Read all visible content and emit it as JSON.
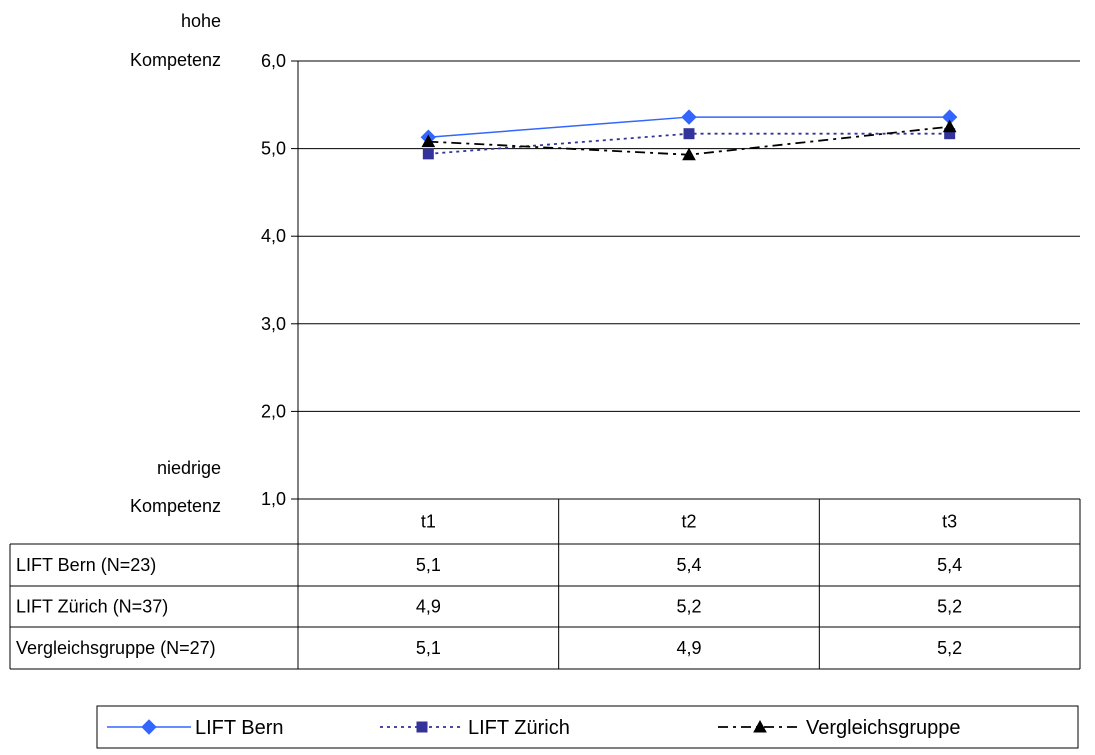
{
  "chart_data": {
    "type": "line",
    "title": "",
    "xlabel": "",
    "ylabel": "",
    "y_top_label": [
      "hohe",
      "Kompetenz"
    ],
    "y_bottom_label": [
      "niedrige",
      "Kompetenz"
    ],
    "ylim": [
      1.0,
      6.0
    ],
    "yticks": [
      1.0,
      2.0,
      3.0,
      4.0,
      5.0,
      6.0
    ],
    "ytick_labels": [
      "1,0",
      "2,0",
      "3,0",
      "4,0",
      "5,0",
      "6,0"
    ],
    "grid": true,
    "categories": [
      "t1",
      "t2",
      "t3"
    ],
    "series": [
      {
        "name": "LIFT Bern (N=23)",
        "legend_name": "LIFT Bern",
        "values": [
          5.13,
          5.36,
          5.36
        ],
        "table_values": [
          "5,1",
          "5,4",
          "5,4"
        ],
        "color": "#3366ff",
        "marker": "diamond",
        "dash": "solid"
      },
      {
        "name": "LIFT Zürich (N=37)",
        "legend_name": "LIFT Zürich",
        "values": [
          4.94,
          5.17,
          5.17
        ],
        "table_values": [
          "4,9",
          "5,2",
          "5,2"
        ],
        "color": "#333399",
        "marker": "square",
        "dash": "dotted"
      },
      {
        "name": "Vergleichsgruppe (N=27)",
        "legend_name": "Vergleichsgruppe",
        "values": [
          5.08,
          4.93,
          5.25
        ],
        "table_values": [
          "5,1",
          "4,9",
          "5,2"
        ],
        "color": "#000000",
        "marker": "triangle",
        "dash": "dashdot"
      }
    ],
    "legend_position": "bottom"
  }
}
